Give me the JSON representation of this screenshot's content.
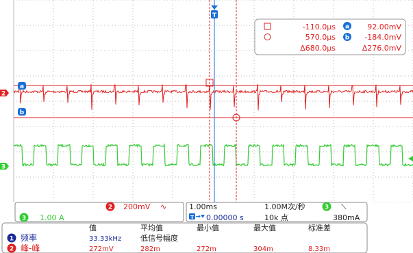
{
  "colors": {
    "ch1": "#1a2a9a",
    "ch2": "#e02020",
    "ch3": "#33cc33",
    "cursor": "#e02020",
    "marker": "#1a6fd8",
    "text": "#222222",
    "value_blue": "#1a2a9a",
    "value_red": "#e02020",
    "grid": "#b8b8b8",
    "box_bg": "#ffffff"
  },
  "icons": {
    "trigger_marker": "trigger-T-marker",
    "cursor_a": "cursor-a-square",
    "cursor_b": "cursor-b-circle"
  },
  "trigger_label": "T",
  "channel_markers": {
    "ch2": "2",
    "ch3": "3",
    "cursor_a": "a",
    "cursor_b": "b"
  },
  "cursor_readout": {
    "a_time": "-110.0µs",
    "a_value": "92.00mV",
    "b_time": "570.0µs",
    "b_value": "-184.0mV",
    "delta_time": "Δ680.0µs",
    "delta_value": "Δ276.0mV",
    "a_badge": "a",
    "b_badge": "b"
  },
  "status_bar": {
    "ch2_badge": "2",
    "ch2_scale": "200mV",
    "ch2_coupling": "∿",
    "ch3_badge": "3",
    "ch3_scale": "1.00 A",
    "timebase": "1.00ms",
    "sample_rate": "1.00M次/秒",
    "trigger_pos": "0.00000 s",
    "record_length": "10k 点",
    "trig_ch_badge": "3",
    "trig_slope": "⟍",
    "trig_level": "380mA"
  },
  "measurements": {
    "headers": [
      "值",
      "平均值",
      "最小值",
      "最大值",
      "标准差"
    ],
    "subheader": "低信号幅度",
    "rows": [
      {
        "badge": "1",
        "label": "频率",
        "value": "33.33kHz",
        "mean": "",
        "min": "",
        "max": "",
        "std": ""
      },
      {
        "badge": "2",
        "label": "峰-峰",
        "value": "272mV",
        "mean": "282m",
        "min": "272m",
        "max": "304m",
        "std": "8.33m"
      }
    ]
  }
}
